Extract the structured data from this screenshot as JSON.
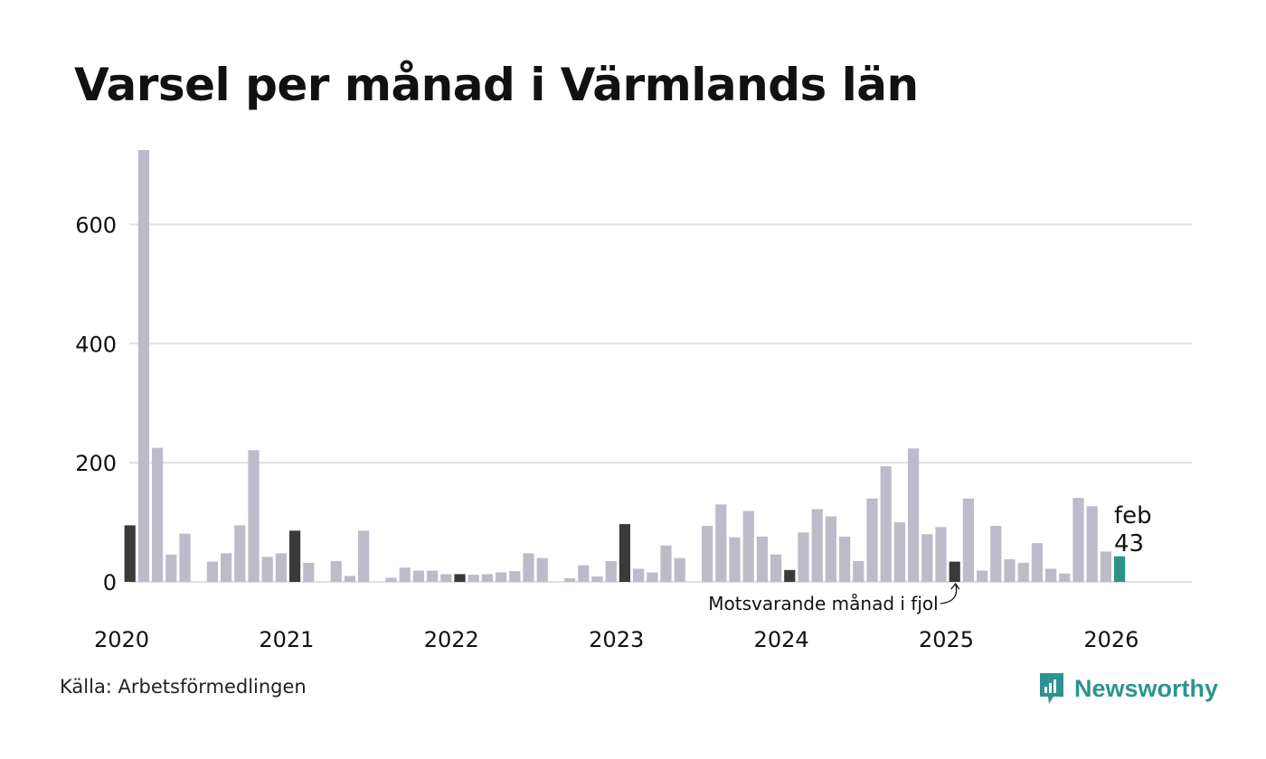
{
  "title": "Varsel per månad i Värmlands län",
  "source": "Källa: Arbetsförmedlingen",
  "brand": {
    "name": "Newsworthy",
    "icon": "newsworthy-logo-icon"
  },
  "colors": {
    "default": "#bcbbc9",
    "same_month_previous_years": "#3a3a3a",
    "current": "#2a9488",
    "grid": "#e0e0e0",
    "brand": "#2e9390"
  },
  "chart_data": {
    "type": "bar",
    "title": "Varsel per månad i Värmlands län",
    "xlabel": "",
    "ylabel": "",
    "ylim": [
      0,
      725
    ],
    "yticks": [
      0,
      200,
      400,
      600
    ],
    "grid": true,
    "start": "2020-01",
    "x_tick_labels": [
      "2020",
      "2021",
      "2022",
      "2023",
      "2024",
      "2025",
      "2026"
    ],
    "x_tick_start_index": [
      0,
      12,
      24,
      36,
      48,
      60,
      72
    ],
    "values": [
      0,
      95,
      725,
      225,
      46,
      81,
      0,
      34,
      48,
      95,
      221,
      42,
      48,
      86,
      32,
      0,
      35,
      10,
      86,
      0,
      7,
      24,
      19,
      19,
      13,
      13,
      12,
      13,
      16,
      18,
      48,
      40,
      0,
      6,
      28,
      9,
      35,
      97,
      22,
      16,
      61,
      40,
      0,
      94,
      130,
      75,
      119,
      76,
      46,
      20,
      83,
      122,
      110,
      76,
      35,
      140,
      194,
      100,
      224,
      80,
      92,
      34,
      140,
      19,
      94,
      38,
      32,
      65,
      22,
      14,
      141,
      127,
      51,
      43
    ],
    "highlight_dark_index": [
      1,
      13,
      25,
      37,
      49,
      61
    ],
    "current_index": 73,
    "callout": {
      "month": "feb",
      "value": "43"
    },
    "annotation": "Motsvarande månad i fjol"
  }
}
